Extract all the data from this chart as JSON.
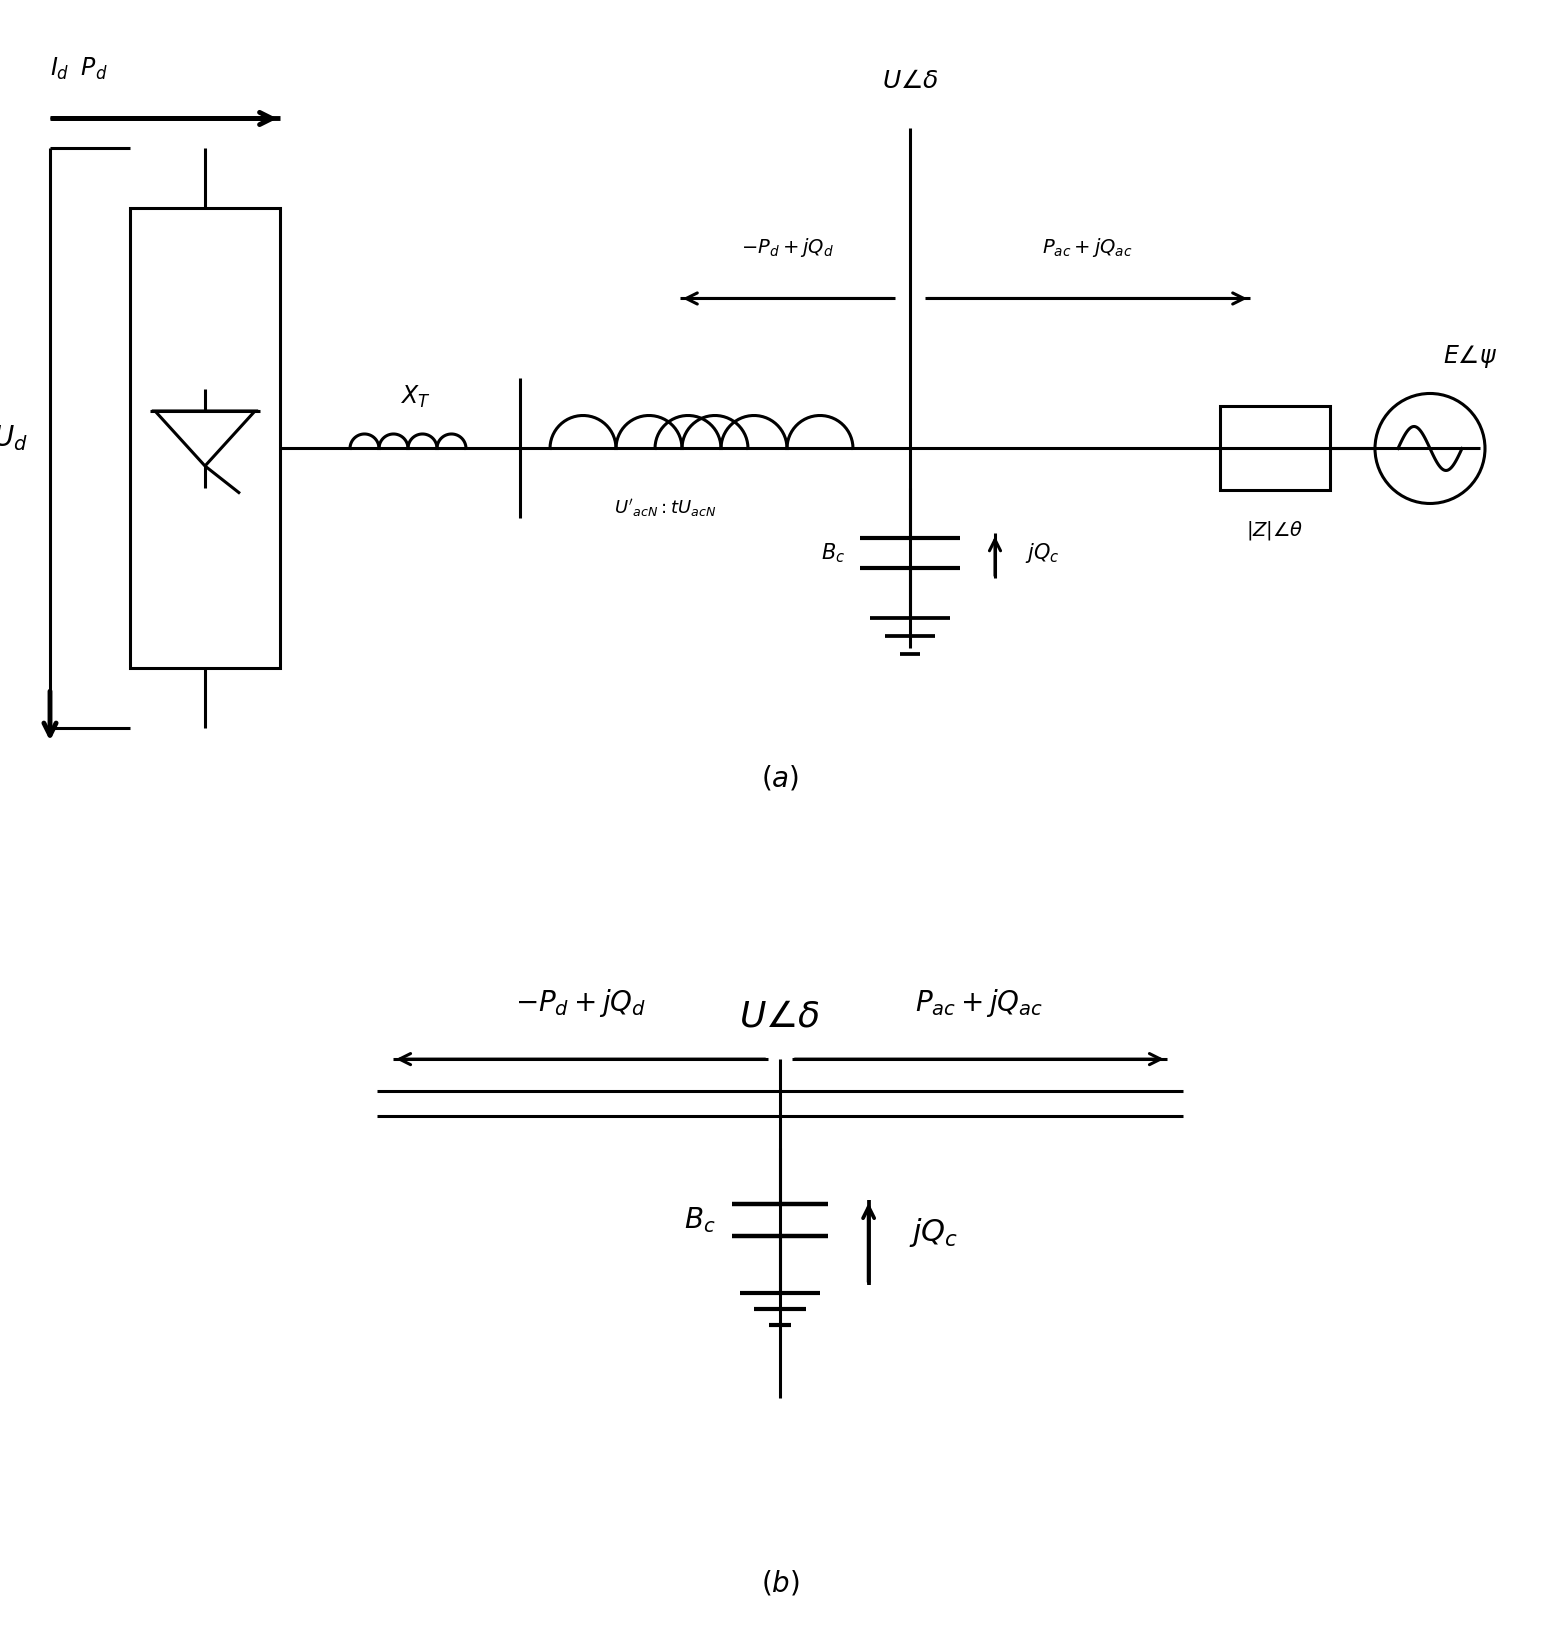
{
  "bg_color": "#ffffff",
  "line_color": "#000000",
  "lw": 2.2,
  "lw_thick": 3.5,
  "fig_width": 15.6,
  "fig_height": 16.48
}
